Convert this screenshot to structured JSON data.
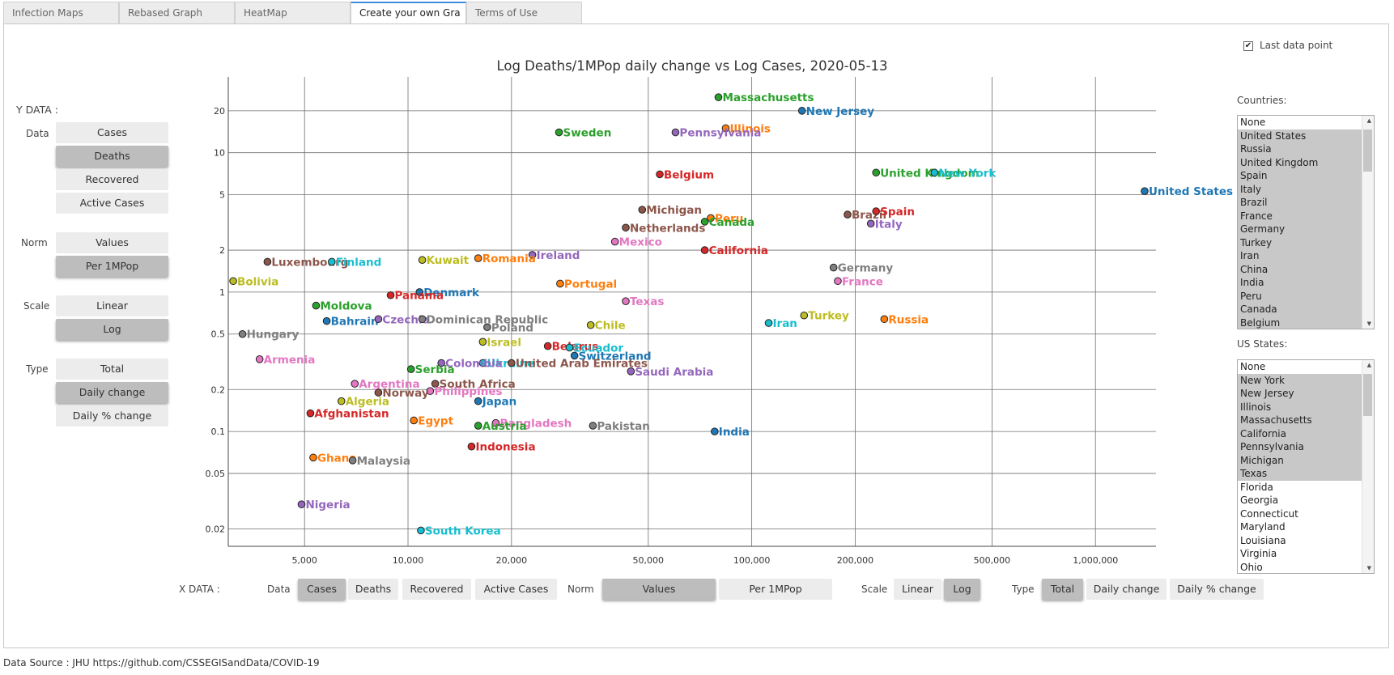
{
  "tabs": [
    "Infection Maps",
    "Rebased Graph",
    "HeatMap",
    "Create your own Gra",
    "Terms of Use"
  ],
  "active_tab": 3,
  "last_data_point": {
    "label": "Last data point",
    "checked": true,
    "check_glyph": "✔"
  },
  "y_data": {
    "title": "Y DATA :",
    "data_label": "Data",
    "data_options": [
      "Cases",
      "Deaths",
      "Recovered",
      "Active Cases"
    ],
    "data_selected": "Deaths",
    "norm_label": "Norm",
    "norm_options": [
      "Values",
      "Per 1MPop"
    ],
    "norm_selected": "Per 1MPop",
    "scale_label": "Scale",
    "scale_options": [
      "Linear",
      "Log"
    ],
    "scale_selected": "Log",
    "type_label": "Type",
    "type_options": [
      "Total",
      "Daily change",
      "Daily % change"
    ],
    "type_selected": "Daily change"
  },
  "x_data": {
    "title": "X DATA :",
    "data_label": "Data",
    "data_options": [
      "Cases",
      "Deaths",
      "Recovered",
      "Active Cases"
    ],
    "data_selected": "Cases",
    "norm_label": "Norm",
    "norm_options": [
      "Values",
      "Per 1MPop"
    ],
    "norm_selected": "Values",
    "scale_label": "Scale",
    "scale_options": [
      "Linear",
      "Log"
    ],
    "scale_selected": "Log",
    "type_label": "Type",
    "type_options": [
      "Total",
      "Daily change",
      "Daily % change"
    ],
    "type_selected": "Total"
  },
  "countries": {
    "label": "Countries:",
    "options": [
      "None",
      "United States",
      "Russia",
      "United Kingdom",
      "Spain",
      "Italy",
      "Brazil",
      "France",
      "Germany",
      "Turkey",
      "Iran",
      "China",
      "India",
      "Peru",
      "Canada",
      "Belgium"
    ],
    "selected": [
      "United States",
      "Russia",
      "United Kingdom",
      "Spain",
      "Italy",
      "Brazil",
      "France",
      "Germany",
      "Turkey",
      "Iran",
      "China",
      "India",
      "Peru",
      "Canada",
      "Belgium"
    ]
  },
  "us_states": {
    "label": "US States:",
    "options": [
      "None",
      "New York",
      "New Jersey",
      "Illinois",
      "Massachusetts",
      "California",
      "Pennsylvania",
      "Michigan",
      "Texas",
      "Florida",
      "Georgia",
      "Connecticut",
      "Maryland",
      "Louisiana",
      "Virginia",
      "Ohio"
    ],
    "selected": [
      "New York",
      "New Jersey",
      "Illinois",
      "Massachusetts",
      "California",
      "Pennsylvania",
      "Michigan",
      "Texas"
    ]
  },
  "footer": "Data Source : JHU https://github.com/CSSEGISandData/COVID-19",
  "chart_data": {
    "type": "scatter",
    "title": "Log Deaths/1MPop daily change vs Log Cases, 2020-05-13",
    "xscale": "log",
    "yscale": "log",
    "xlim": [
      3000,
      1500000
    ],
    "ylim": [
      0.015,
      35
    ],
    "xticks": [
      5000,
      10000,
      20000,
      50000,
      100000,
      200000,
      500000,
      1000000
    ],
    "xtick_labels": [
      "5,000",
      "10,000",
      "20,000",
      "50,000",
      "100,000",
      "200,000",
      "500,000",
      "1,000,000"
    ],
    "yticks": [
      0.02,
      0.05,
      0.1,
      0.2,
      0.5,
      1,
      2,
      5,
      10,
      20
    ],
    "ytick_labels": [
      "0.02",
      "0.05",
      "0.1",
      "0.2",
      "0.5",
      "1",
      "2",
      "5",
      "10",
      "20"
    ],
    "grid": true,
    "points": [
      {
        "label": "Massachusetts",
        "x": 80000,
        "y": 25,
        "color": "#2ca02c"
      },
      {
        "label": "New Jersey",
        "x": 140000,
        "y": 20,
        "color": "#1f77b4"
      },
      {
        "label": "Illinois",
        "x": 84000,
        "y": 15,
        "color": "#ff7f0e"
      },
      {
        "label": "Pennsylvania",
        "x": 60000,
        "y": 14,
        "color": "#9467bd"
      },
      {
        "label": "Sweden",
        "x": 27500,
        "y": 14,
        "color": "#2ca02c"
      },
      {
        "label": "Belgium",
        "x": 54000,
        "y": 7,
        "color": "#d62728"
      },
      {
        "label": "United Kingdom",
        "x": 230000,
        "y": 7.2,
        "color": "#2ca02c"
      },
      {
        "label": "New York",
        "x": 340000,
        "y": 7.2,
        "color": "#17becf"
      },
      {
        "label": "United States",
        "x": 1390000,
        "y": 5.3,
        "color": "#1f77b4"
      },
      {
        "label": "Michigan",
        "x": 48000,
        "y": 3.9,
        "color": "#8c564b"
      },
      {
        "label": "Peru",
        "x": 76000,
        "y": 3.4,
        "color": "#ff7f0e"
      },
      {
        "label": "Canada",
        "x": 73000,
        "y": 3.2,
        "color": "#2ca02c"
      },
      {
        "label": "Netherlands",
        "x": 43000,
        "y": 2.9,
        "color": "#8c564b"
      },
      {
        "label": "Brazil",
        "x": 190000,
        "y": 3.6,
        "color": "#8c564b"
      },
      {
        "label": "Spain",
        "x": 230000,
        "y": 3.8,
        "color": "#d62728"
      },
      {
        "label": "Italy",
        "x": 222000,
        "y": 3.1,
        "color": "#9467bd"
      },
      {
        "label": "Mexico",
        "x": 40000,
        "y": 2.3,
        "color": "#e377c2"
      },
      {
        "label": "California",
        "x": 73000,
        "y": 2.0,
        "color": "#d62728"
      },
      {
        "label": "Ireland",
        "x": 23000,
        "y": 1.85,
        "color": "#9467bd"
      },
      {
        "label": "Romania",
        "x": 16000,
        "y": 1.75,
        "color": "#ff7f0e"
      },
      {
        "label": "Kuwait",
        "x": 11000,
        "y": 1.7,
        "color": "#bcbd22"
      },
      {
        "label": "Luxembourg",
        "x": 3900,
        "y": 1.65,
        "color": "#8c564b"
      },
      {
        "label": "Finland",
        "x": 6000,
        "y": 1.65,
        "color": "#17becf"
      },
      {
        "label": "Bolivia",
        "x": 3100,
        "y": 1.2,
        "color": "#bcbd22"
      },
      {
        "label": "Germany",
        "x": 173000,
        "y": 1.5,
        "color": "#7f7f7f"
      },
      {
        "label": "France",
        "x": 178000,
        "y": 1.2,
        "color": "#e377c2"
      },
      {
        "label": "Portugal",
        "x": 27700,
        "y": 1.15,
        "color": "#ff7f0e"
      },
      {
        "label": "Denmark",
        "x": 10800,
        "y": 1.0,
        "color": "#1f77b4"
      },
      {
        "label": "Panama",
        "x": 8900,
        "y": 0.95,
        "color": "#d62728"
      },
      {
        "label": "Texas",
        "x": 43000,
        "y": 0.86,
        "color": "#e377c2"
      },
      {
        "label": "Moldova",
        "x": 5400,
        "y": 0.8,
        "color": "#2ca02c"
      },
      {
        "label": "Turkey",
        "x": 142000,
        "y": 0.68,
        "color": "#bcbd22"
      },
      {
        "label": "Russia",
        "x": 243000,
        "y": 0.64,
        "color": "#ff7f0e"
      },
      {
        "label": "Iran",
        "x": 112000,
        "y": 0.6,
        "color": "#17becf"
      },
      {
        "label": "Bahrain",
        "x": 5800,
        "y": 0.62,
        "color": "#1f77b4"
      },
      {
        "label": "Czechia",
        "x": 8200,
        "y": 0.64,
        "color": "#9467bd"
      },
      {
        "label": "Dominican Republic",
        "x": 11000,
        "y": 0.64,
        "color": "#7f7f7f"
      },
      {
        "label": "Poland",
        "x": 17000,
        "y": 0.56,
        "color": "#7f7f7f"
      },
      {
        "label": "Chile",
        "x": 34000,
        "y": 0.58,
        "color": "#bcbd22"
      },
      {
        "label": "Hungary",
        "x": 3300,
        "y": 0.5,
        "color": "#7f7f7f"
      },
      {
        "label": "Israel",
        "x": 16500,
        "y": 0.44,
        "color": "#bcbd22"
      },
      {
        "label": "Belarus",
        "x": 25500,
        "y": 0.41,
        "color": "#d62728"
      },
      {
        "label": "Ecuador",
        "x": 29500,
        "y": 0.4,
        "color": "#17becf"
      },
      {
        "label": "Switzerland",
        "x": 30500,
        "y": 0.35,
        "color": "#1f77b4"
      },
      {
        "label": "Ukraine",
        "x": 16500,
        "y": 0.31,
        "color": "#17becf"
      },
      {
        "label": "Colombia",
        "x": 12500,
        "y": 0.31,
        "color": "#9467bd"
      },
      {
        "label": "United Arab Emirates",
        "x": 20000,
        "y": 0.31,
        "color": "#8c564b"
      },
      {
        "label": "Saudi Arabia",
        "x": 44500,
        "y": 0.27,
        "color": "#9467bd"
      },
      {
        "label": "Serbia",
        "x": 10200,
        "y": 0.28,
        "color": "#2ca02c"
      },
      {
        "label": "Armenia",
        "x": 3700,
        "y": 0.33,
        "color": "#e377c2"
      },
      {
        "label": "Argentina",
        "x": 7000,
        "y": 0.22,
        "color": "#e377c2"
      },
      {
        "label": "South Africa",
        "x": 12000,
        "y": 0.22,
        "color": "#8c564b"
      },
      {
        "label": "Philippines",
        "x": 11600,
        "y": 0.195,
        "color": "#e377c2"
      },
      {
        "label": "Norway",
        "x": 8200,
        "y": 0.19,
        "color": "#8c564b"
      },
      {
        "label": "Algeria",
        "x": 6400,
        "y": 0.165,
        "color": "#bcbd22"
      },
      {
        "label": "Japan",
        "x": 16000,
        "y": 0.165,
        "color": "#1f77b4"
      },
      {
        "label": "Afghanistan",
        "x": 5200,
        "y": 0.135,
        "color": "#d62728"
      },
      {
        "label": "Egypt",
        "x": 10400,
        "y": 0.12,
        "color": "#ff7f0e"
      },
      {
        "label": "Bangladesh",
        "x": 18000,
        "y": 0.115,
        "color": "#e377c2"
      },
      {
        "label": "Austria",
        "x": 16000,
        "y": 0.11,
        "color": "#2ca02c"
      },
      {
        "label": "Pakistan",
        "x": 34500,
        "y": 0.11,
        "color": "#7f7f7f"
      },
      {
        "label": "India",
        "x": 78000,
        "y": 0.1,
        "color": "#1f77b4"
      },
      {
        "label": "Indonesia",
        "x": 15300,
        "y": 0.078,
        "color": "#d62728"
      },
      {
        "label": "Ghana",
        "x": 5300,
        "y": 0.065,
        "color": "#ff7f0e"
      },
      {
        "label": "Malaysia",
        "x": 6900,
        "y": 0.062,
        "color": "#7f7f7f"
      },
      {
        "label": "Nigeria",
        "x": 4900,
        "y": 0.03,
        "color": "#9467bd"
      },
      {
        "label": "South Korea",
        "x": 10900,
        "y": 0.0195,
        "color": "#17becf"
      }
    ]
  }
}
